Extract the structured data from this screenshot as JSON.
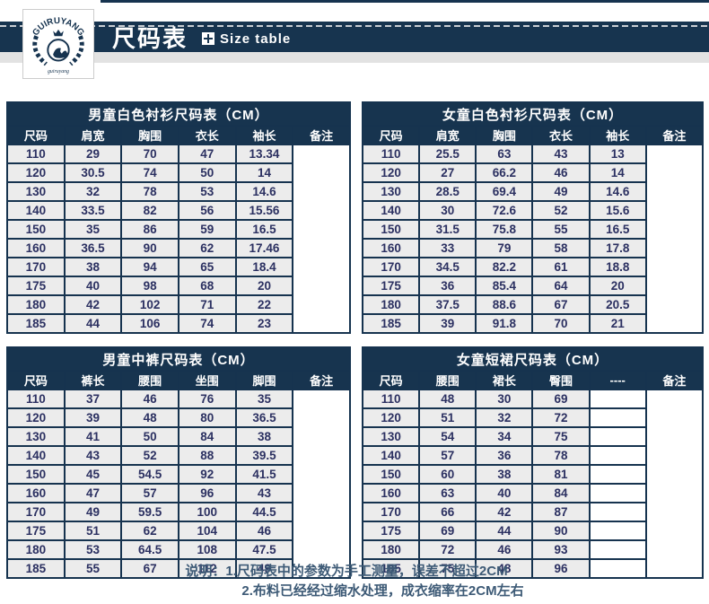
{
  "page": {
    "accent_navy": "#17344f",
    "table_border_navy": "#16334f",
    "cell_text_color": "#2b3061",
    "row_background": "#ececec",
    "gray_strip": "#e2e2e2"
  },
  "header": {
    "logo": {
      "arc_text": "GUIRUYANG",
      "script_text": "guiruyang"
    },
    "title_cn": "尺码表",
    "title_en": "Size table"
  },
  "tables": [
    {
      "title": "男童白色衬衫尺码表（CM）",
      "columns": [
        "尺码",
        "肩宽",
        "胸围",
        "衣长",
        "袖长",
        "备注"
      ],
      "rows": [
        [
          "110",
          "29",
          "70",
          "47",
          "13.34"
        ],
        [
          "120",
          "30.5",
          "74",
          "50",
          "14"
        ],
        [
          "130",
          "32",
          "78",
          "53",
          "14.6"
        ],
        [
          "140",
          "33.5",
          "82",
          "56",
          "15.56"
        ],
        [
          "150",
          "35",
          "86",
          "59",
          "16.5"
        ],
        [
          "160",
          "36.5",
          "90",
          "62",
          "17.46"
        ],
        [
          "170",
          "38",
          "94",
          "65",
          "18.4"
        ],
        [
          "175",
          "40",
          "98",
          "68",
          "20"
        ],
        [
          "180",
          "42",
          "102",
          "71",
          "22"
        ],
        [
          "185",
          "44",
          "106",
          "74",
          "23"
        ]
      ],
      "remark": ""
    },
    {
      "title": "女童白色衬衫尺码表（CM）",
      "columns": [
        "尺码",
        "肩宽",
        "胸围",
        "衣长",
        "袖长",
        "备注"
      ],
      "rows": [
        [
          "110",
          "25.5",
          "63",
          "43",
          "13"
        ],
        [
          "120",
          "27",
          "66.2",
          "46",
          "14"
        ],
        [
          "130",
          "28.5",
          "69.4",
          "49",
          "14.6"
        ],
        [
          "140",
          "30",
          "72.6",
          "52",
          "15.6"
        ],
        [
          "150",
          "31.5",
          "75.8",
          "55",
          "16.5"
        ],
        [
          "160",
          "33",
          "79",
          "58",
          "17.8"
        ],
        [
          "170",
          "34.5",
          "82.2",
          "61",
          "18.8"
        ],
        [
          "175",
          "36",
          "85.4",
          "64",
          "20"
        ],
        [
          "180",
          "37.5",
          "88.6",
          "67",
          "20.5"
        ],
        [
          "185",
          "39",
          "91.8",
          "70",
          "21"
        ]
      ],
      "remark": ""
    },
    {
      "title": "男童中裤尺码表（CM）",
      "columns": [
        "尺码",
        "裤长",
        "腰围",
        "坐围",
        "脚围",
        "备注"
      ],
      "rows": [
        [
          "110",
          "37",
          "46",
          "76",
          "35"
        ],
        [
          "120",
          "39",
          "48",
          "80",
          "36.5"
        ],
        [
          "130",
          "41",
          "50",
          "84",
          "38"
        ],
        [
          "140",
          "43",
          "52",
          "88",
          "39.5"
        ],
        [
          "150",
          "45",
          "54.5",
          "92",
          "41.5"
        ],
        [
          "160",
          "47",
          "57",
          "96",
          "43"
        ],
        [
          "170",
          "49",
          "59.5",
          "100",
          "44.5"
        ],
        [
          "175",
          "51",
          "62",
          "104",
          "46"
        ],
        [
          "180",
          "53",
          "64.5",
          "108",
          "47.5"
        ],
        [
          "185",
          "55",
          "67",
          "112",
          "49"
        ]
      ],
      "remark": ""
    },
    {
      "title": "女童短裙尺码表（CM）",
      "columns": [
        "尺码",
        "腰围",
        "裙长",
        "臀围",
        "----",
        "备注"
      ],
      "rows": [
        [
          "110",
          "48",
          "30",
          "69",
          ""
        ],
        [
          "120",
          "51",
          "32",
          "72",
          ""
        ],
        [
          "130",
          "54",
          "34",
          "75",
          ""
        ],
        [
          "140",
          "57",
          "36",
          "78",
          ""
        ],
        [
          "150",
          "60",
          "38",
          "81",
          ""
        ],
        [
          "160",
          "63",
          "40",
          "84",
          ""
        ],
        [
          "170",
          "66",
          "42",
          "87",
          ""
        ],
        [
          "175",
          "69",
          "44",
          "90",
          ""
        ],
        [
          "180",
          "72",
          "46",
          "93",
          ""
        ],
        [
          "185",
          "75",
          "48",
          "96",
          ""
        ]
      ],
      "remark": ""
    }
  ],
  "footer": {
    "label": "说明：",
    "line1": "1.尺码表中的参数为手工测量，误差不超过2CM",
    "line2": "2.布料已经经过缩水处理，成衣缩率在2CM左右"
  }
}
